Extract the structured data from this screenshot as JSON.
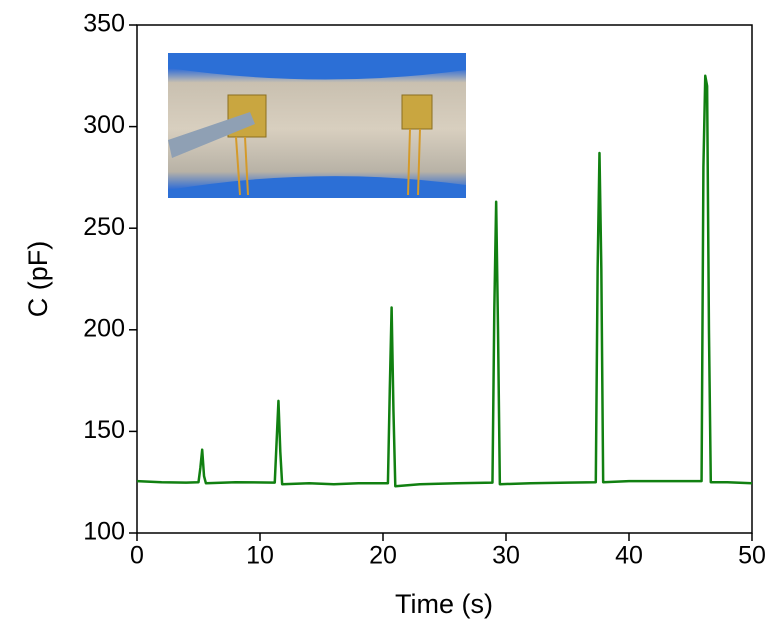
{
  "chart_data": {
    "type": "line",
    "xlabel": "Time (s)",
    "ylabel": "C (pF)",
    "xlim": [
      0,
      50
    ],
    "ylim": [
      100,
      350
    ],
    "xticks": [
      0,
      10,
      20,
      30,
      40,
      50
    ],
    "yticks": [
      100,
      150,
      200,
      250,
      300,
      350
    ],
    "series": [
      {
        "color": "#118011",
        "x": [
          0,
          2,
          4,
          5.0,
          5.15,
          5.3,
          5.45,
          5.6,
          8,
          11.2,
          11.35,
          11.5,
          11.65,
          11.8,
          14,
          16,
          18,
          20.4,
          20.55,
          20.7,
          20.85,
          21.0,
          23,
          26,
          28.9,
          29.05,
          29.2,
          29.35,
          29.5,
          32,
          35,
          37.3,
          37.45,
          37.6,
          37.75,
          37.9,
          40,
          43,
          45.9,
          46.05,
          46.2,
          46.35,
          46.5,
          46.65,
          48,
          50
        ],
        "values": [
          125.5,
          125,
          124.8,
          125,
          132,
          141,
          128,
          124.5,
          125,
          124.8,
          145,
          165,
          140,
          124,
          124.5,
          124,
          124.5,
          124.5,
          170,
          211,
          160,
          123,
          124,
          124.5,
          124.8,
          210,
          263,
          200,
          124,
          124.5,
          124.8,
          125,
          230,
          287,
          230,
          125,
          125.5,
          125.5,
          125.5,
          280,
          325,
          320,
          200,
          125,
          125,
          124.5
        ]
      }
    ]
  }
}
